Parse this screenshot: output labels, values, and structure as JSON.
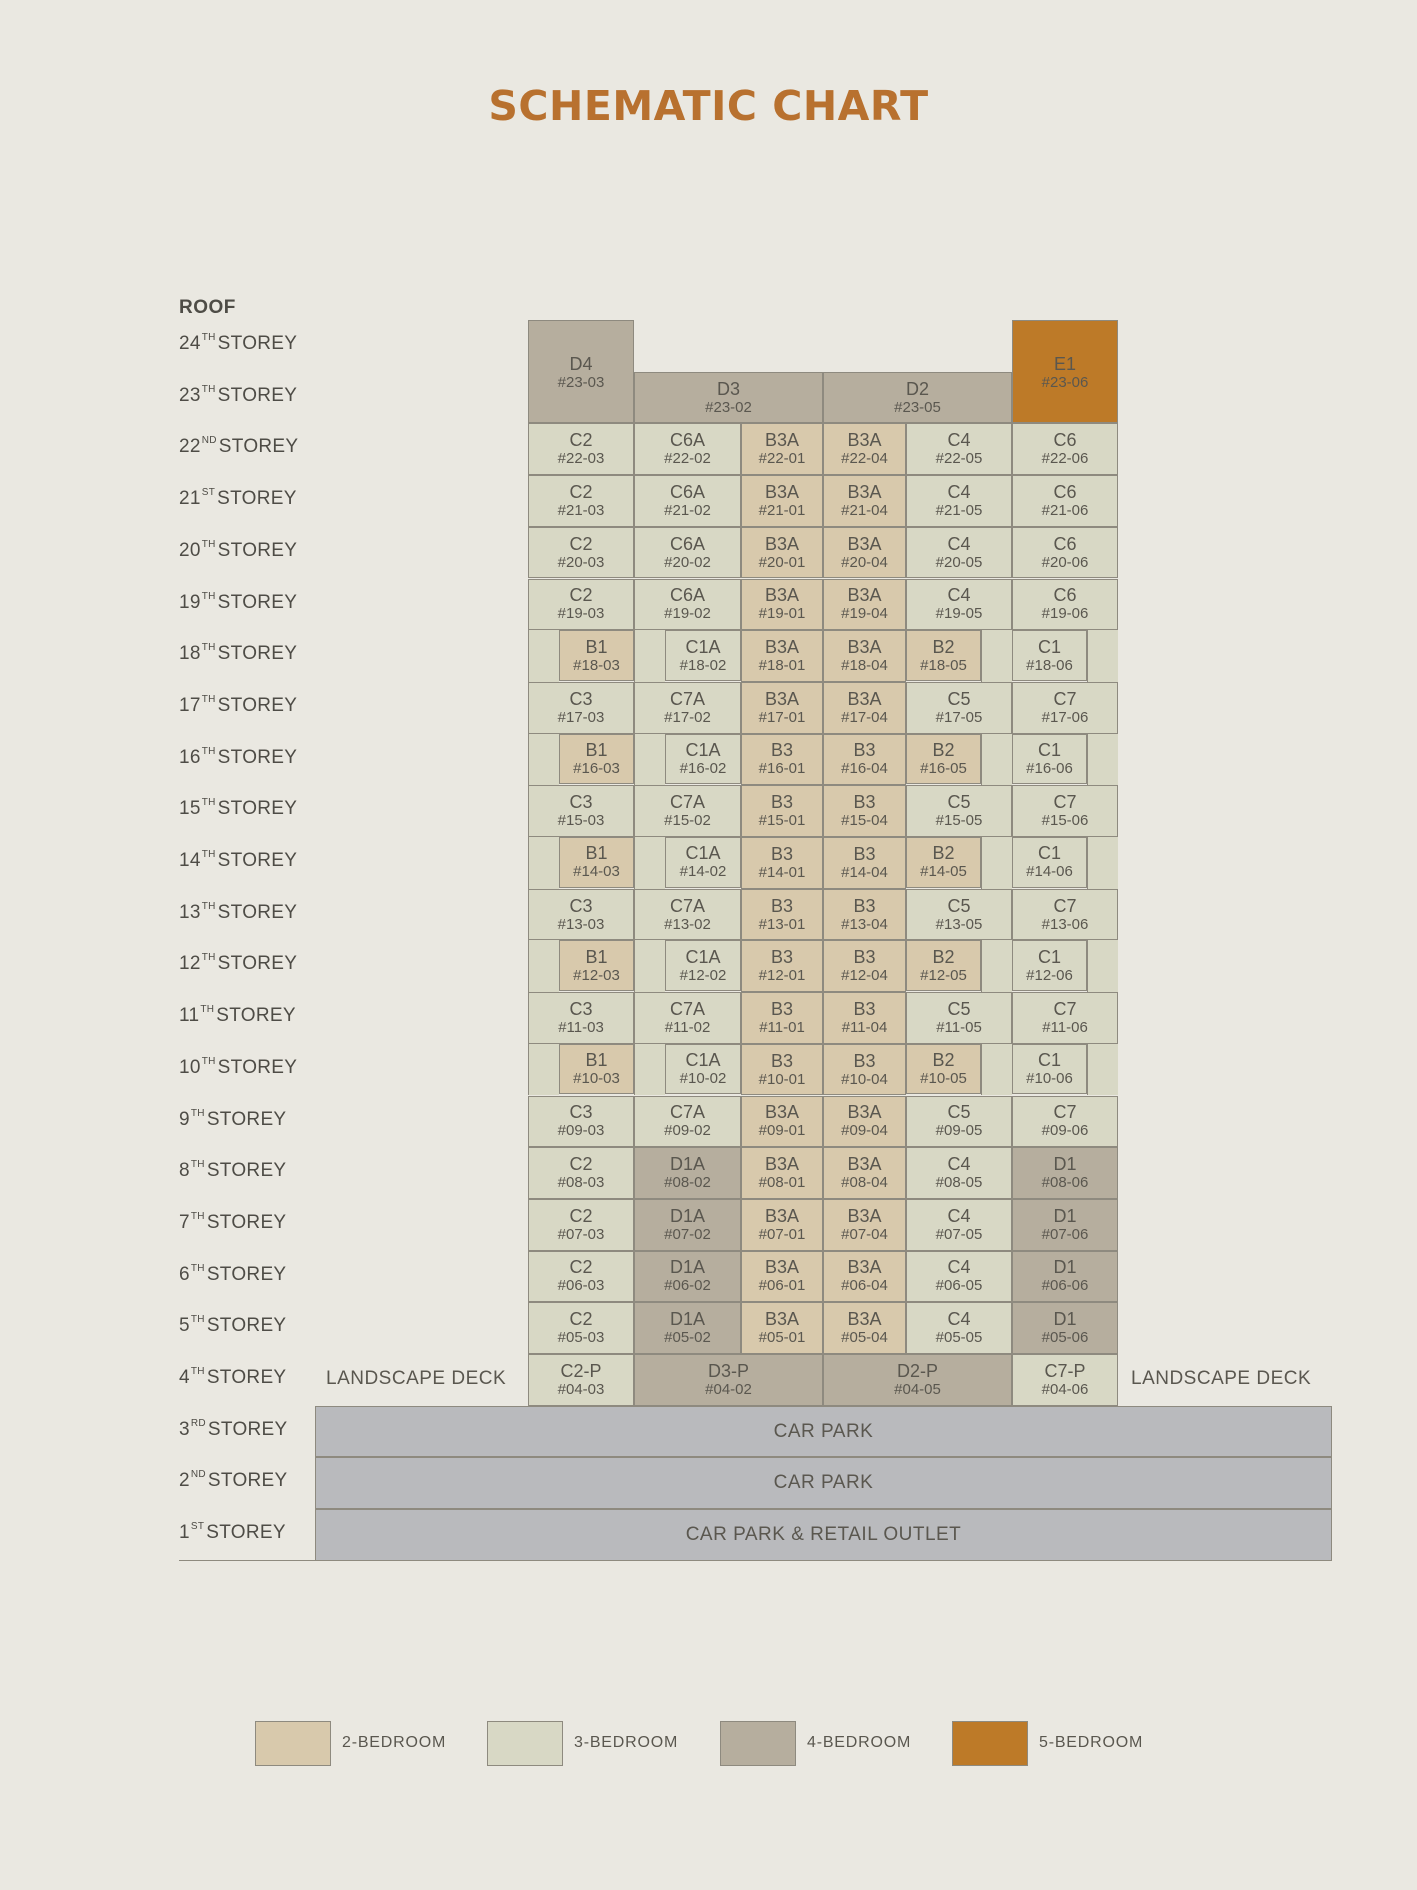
{
  "title": "SCHEMATIC CHART",
  "roof_label": "ROOF",
  "colors": {
    "2-bedroom": "#d8c9ac",
    "3-bedroom": "#d8d8c5",
    "4-bedroom": "#b6ae9e",
    "5-bedroom": "#bd7a28",
    "car_park": "#b9babd",
    "title": "#b8712f"
  },
  "storeys": [
    {
      "num": "24",
      "suffix": "TH",
      "word": "STOREY"
    },
    {
      "num": "23",
      "suffix": "TH",
      "word": "STOREY"
    },
    {
      "num": "22",
      "suffix": "ND",
      "word": "STOREY"
    },
    {
      "num": "21",
      "suffix": "ST",
      "word": "STOREY"
    },
    {
      "num": "20",
      "suffix": "TH",
      "word": "STOREY"
    },
    {
      "num": "19",
      "suffix": "TH",
      "word": "STOREY"
    },
    {
      "num": "18",
      "suffix": "TH",
      "word": "STOREY"
    },
    {
      "num": "17",
      "suffix": "TH",
      "word": "STOREY"
    },
    {
      "num": "16",
      "suffix": "TH",
      "word": "STOREY"
    },
    {
      "num": "15",
      "suffix": "TH",
      "word": "STOREY"
    },
    {
      "num": "14",
      "suffix": "TH",
      "word": "STOREY"
    },
    {
      "num": "13",
      "suffix": "TH",
      "word": "STOREY"
    },
    {
      "num": "12",
      "suffix": "TH",
      "word": "STOREY"
    },
    {
      "num": "11",
      "suffix": "TH",
      "word": "STOREY"
    },
    {
      "num": "10",
      "suffix": "TH",
      "word": "STOREY"
    },
    {
      "num": "9",
      "suffix": "TH",
      "word": "STOREY"
    },
    {
      "num": "8",
      "suffix": "TH",
      "word": "STOREY"
    },
    {
      "num": "7",
      "suffix": "TH",
      "word": "STOREY"
    },
    {
      "num": "6",
      "suffix": "TH",
      "word": "STOREY"
    },
    {
      "num": "5",
      "suffix": "TH",
      "word": "STOREY"
    },
    {
      "num": "4",
      "suffix": "TH",
      "word": "STOREY"
    },
    {
      "num": "3",
      "suffix": "RD",
      "word": "STOREY"
    },
    {
      "num": "2",
      "suffix": "ND",
      "word": "STOREY"
    },
    {
      "num": "1",
      "suffix": "ST",
      "word": "STOREY"
    }
  ],
  "units": [
    {
      "type": "D4",
      "unit": "#23-03",
      "bedroom": 4
    },
    {
      "type": "D3",
      "unit": "#23-02",
      "bedroom": 4
    },
    {
      "type": "D2",
      "unit": "#23-05",
      "bedroom": 4
    },
    {
      "type": "E1",
      "unit": "#23-06",
      "bedroom": 5
    },
    {
      "type": "C2",
      "unit": "#22-03",
      "bedroom": 3
    },
    {
      "type": "C6A",
      "unit": "#22-02",
      "bedroom": 3
    },
    {
      "type": "B3A",
      "unit": "#22-01",
      "bedroom": 2
    },
    {
      "type": "B3A",
      "unit": "#22-04",
      "bedroom": 2
    },
    {
      "type": "C4",
      "unit": "#22-05",
      "bedroom": 3
    },
    {
      "type": "C6",
      "unit": "#22-06",
      "bedroom": 3
    },
    {
      "type": "C2",
      "unit": "#21-03",
      "bedroom": 3
    },
    {
      "type": "C6A",
      "unit": "#21-02",
      "bedroom": 3
    },
    {
      "type": "B3A",
      "unit": "#21-01",
      "bedroom": 2
    },
    {
      "type": "B3A",
      "unit": "#21-04",
      "bedroom": 2
    },
    {
      "type": "C4",
      "unit": "#21-05",
      "bedroom": 3
    },
    {
      "type": "C6",
      "unit": "#21-06",
      "bedroom": 3
    },
    {
      "type": "C2",
      "unit": "#20-03",
      "bedroom": 3
    },
    {
      "type": "C6A",
      "unit": "#20-02",
      "bedroom": 3
    },
    {
      "type": "B3A",
      "unit": "#20-01",
      "bedroom": 2
    },
    {
      "type": "B3A",
      "unit": "#20-04",
      "bedroom": 2
    },
    {
      "type": "C4",
      "unit": "#20-05",
      "bedroom": 3
    },
    {
      "type": "C6",
      "unit": "#20-06",
      "bedroom": 3
    },
    {
      "type": "C2",
      "unit": "#19-03",
      "bedroom": 3
    },
    {
      "type": "C6A",
      "unit": "#19-02",
      "bedroom": 3
    },
    {
      "type": "B3A",
      "unit": "#19-01",
      "bedroom": 2
    },
    {
      "type": "B3A",
      "unit": "#19-04",
      "bedroom": 2
    },
    {
      "type": "C4",
      "unit": "#19-05",
      "bedroom": 3
    },
    {
      "type": "C6",
      "unit": "#19-06",
      "bedroom": 3
    },
    {
      "type": "B1",
      "unit": "#18-03",
      "bedroom": 2
    },
    {
      "type": "C1A",
      "unit": "#18-02",
      "bedroom": 3
    },
    {
      "type": "B3A",
      "unit": "#18-01",
      "bedroom": 2
    },
    {
      "type": "B3A",
      "unit": "#18-04",
      "bedroom": 2
    },
    {
      "type": "B2",
      "unit": "#18-05",
      "bedroom": 2
    },
    {
      "type": "C1",
      "unit": "#18-06",
      "bedroom": 3
    },
    {
      "type": "C3",
      "unit": "#17-03",
      "bedroom": 3
    },
    {
      "type": "C7A",
      "unit": "#17-02",
      "bedroom": 3
    },
    {
      "type": "B3A",
      "unit": "#17-01",
      "bedroom": 2
    },
    {
      "type": "B3A",
      "unit": "#17-04",
      "bedroom": 2
    },
    {
      "type": "C5",
      "unit": "#17-05",
      "bedroom": 3
    },
    {
      "type": "C7",
      "unit": "#17-06",
      "bedroom": 3
    },
    {
      "type": "B1",
      "unit": "#16-03",
      "bedroom": 2
    },
    {
      "type": "C1A",
      "unit": "#16-02",
      "bedroom": 3
    },
    {
      "type": "B3",
      "unit": "#16-01",
      "bedroom": 2
    },
    {
      "type": "B3",
      "unit": "#16-04",
      "bedroom": 2
    },
    {
      "type": "B2",
      "unit": "#16-05",
      "bedroom": 2
    },
    {
      "type": "C1",
      "unit": "#16-06",
      "bedroom": 3
    },
    {
      "type": "C3",
      "unit": "#15-03",
      "bedroom": 3
    },
    {
      "type": "C7A",
      "unit": "#15-02",
      "bedroom": 3
    },
    {
      "type": "B3",
      "unit": "#15-01",
      "bedroom": 2
    },
    {
      "type": "B3",
      "unit": "#15-04",
      "bedroom": 2
    },
    {
      "type": "C5",
      "unit": "#15-05",
      "bedroom": 3
    },
    {
      "type": "C7",
      "unit": "#15-06",
      "bedroom": 3
    },
    {
      "type": "B1",
      "unit": "#14-03",
      "bedroom": 2
    },
    {
      "type": "C1A",
      "unit": "#14-02",
      "bedroom": 3
    },
    {
      "type": "B3",
      "unit": "#14-01",
      "bedroom": 2
    },
    {
      "type": "B3",
      "unit": "#14-04",
      "bedroom": 2
    },
    {
      "type": "B2",
      "unit": "#14-05",
      "bedroom": 2
    },
    {
      "type": "C1",
      "unit": "#14-06",
      "bedroom": 3
    },
    {
      "type": "C3",
      "unit": "#13-03",
      "bedroom": 3
    },
    {
      "type": "C7A",
      "unit": "#13-02",
      "bedroom": 3
    },
    {
      "type": "B3",
      "unit": "#13-01",
      "bedroom": 2
    },
    {
      "type": "B3",
      "unit": "#13-04",
      "bedroom": 2
    },
    {
      "type": "C5",
      "unit": "#13-05",
      "bedroom": 3
    },
    {
      "type": "C7",
      "unit": "#13-06",
      "bedroom": 3
    },
    {
      "type": "B1",
      "unit": "#12-03",
      "bedroom": 2
    },
    {
      "type": "C1A",
      "unit": "#12-02",
      "bedroom": 3
    },
    {
      "type": "B3",
      "unit": "#12-01",
      "bedroom": 2
    },
    {
      "type": "B3",
      "unit": "#12-04",
      "bedroom": 2
    },
    {
      "type": "B2",
      "unit": "#12-05",
      "bedroom": 2
    },
    {
      "type": "C1",
      "unit": "#12-06",
      "bedroom": 3
    },
    {
      "type": "C3",
      "unit": "#11-03",
      "bedroom": 3
    },
    {
      "type": "C7A",
      "unit": "#11-02",
      "bedroom": 3
    },
    {
      "type": "B3",
      "unit": "#11-01",
      "bedroom": 2
    },
    {
      "type": "B3",
      "unit": "#11-04",
      "bedroom": 2
    },
    {
      "type": "C5",
      "unit": "#11-05",
      "bedroom": 3
    },
    {
      "type": "C7",
      "unit": "#11-06",
      "bedroom": 3
    },
    {
      "type": "B1",
      "unit": "#10-03",
      "bedroom": 2
    },
    {
      "type": "C1A",
      "unit": "#10-02",
      "bedroom": 3
    },
    {
      "type": "B3",
      "unit": "#10-01",
      "bedroom": 2
    },
    {
      "type": "B3",
      "unit": "#10-04",
      "bedroom": 2
    },
    {
      "type": "B2",
      "unit": "#10-05",
      "bedroom": 2
    },
    {
      "type": "C1",
      "unit": "#10-06",
      "bedroom": 3
    },
    {
      "type": "C3",
      "unit": "#09-03",
      "bedroom": 3
    },
    {
      "type": "C7A",
      "unit": "#09-02",
      "bedroom": 3
    },
    {
      "type": "B3A",
      "unit": "#09-01",
      "bedroom": 2
    },
    {
      "type": "B3A",
      "unit": "#09-04",
      "bedroom": 2
    },
    {
      "type": "C5",
      "unit": "#09-05",
      "bedroom": 3
    },
    {
      "type": "C7",
      "unit": "#09-06",
      "bedroom": 3
    },
    {
      "type": "C2",
      "unit": "#08-03",
      "bedroom": 3
    },
    {
      "type": "D1A",
      "unit": "#08-02",
      "bedroom": 4
    },
    {
      "type": "B3A",
      "unit": "#08-01",
      "bedroom": 2
    },
    {
      "type": "B3A",
      "unit": "#08-04",
      "bedroom": 2
    },
    {
      "type": "C4",
      "unit": "#08-05",
      "bedroom": 3
    },
    {
      "type": "D1",
      "unit": "#08-06",
      "bedroom": 4
    },
    {
      "type": "C2",
      "unit": "#07-03",
      "bedroom": 3
    },
    {
      "type": "D1A",
      "unit": "#07-02",
      "bedroom": 4
    },
    {
      "type": "B3A",
      "unit": "#07-01",
      "bedroom": 2
    },
    {
      "type": "B3A",
      "unit": "#07-04",
      "bedroom": 2
    },
    {
      "type": "C4",
      "unit": "#07-05",
      "bedroom": 3
    },
    {
      "type": "D1",
      "unit": "#07-06",
      "bedroom": 4
    },
    {
      "type": "C2",
      "unit": "#06-03",
      "bedroom": 3
    },
    {
      "type": "D1A",
      "unit": "#06-02",
      "bedroom": 4
    },
    {
      "type": "B3A",
      "unit": "#06-01",
      "bedroom": 2
    },
    {
      "type": "B3A",
      "unit": "#06-04",
      "bedroom": 2
    },
    {
      "type": "C4",
      "unit": "#06-05",
      "bedroom": 3
    },
    {
      "type": "D1",
      "unit": "#06-06",
      "bedroom": 4
    },
    {
      "type": "C2",
      "unit": "#05-03",
      "bedroom": 3
    },
    {
      "type": "D1A",
      "unit": "#05-02",
      "bedroom": 4
    },
    {
      "type": "B3A",
      "unit": "#05-01",
      "bedroom": 2
    },
    {
      "type": "B3A",
      "unit": "#05-04",
      "bedroom": 2
    },
    {
      "type": "C4",
      "unit": "#05-05",
      "bedroom": 3
    },
    {
      "type": "D1",
      "unit": "#05-06",
      "bedroom": 4
    },
    {
      "type": "C2-P",
      "unit": "#04-03",
      "bedroom": 3
    },
    {
      "type": "D3-P",
      "unit": "#04-02",
      "bedroom": 4
    },
    {
      "type": "D2-P",
      "unit": "#04-05",
      "bedroom": 4
    },
    {
      "type": "C7-P",
      "unit": "#04-06",
      "bedroom": 3
    }
  ],
  "landscape_deck_left": "LANDSCAPE DECK",
  "landscape_deck_right": "LANDSCAPE DECK",
  "podium": [
    "CAR PARK",
    "CAR PARK",
    "CAR PARK & RETAIL OUTLET"
  ],
  "legend": [
    {
      "label": "2-BEDROOM",
      "color": "#d8c9ac"
    },
    {
      "label": "3-BEDROOM",
      "color": "#d8d8c5"
    },
    {
      "label": "4-BEDROOM",
      "color": "#b6ae9e"
    },
    {
      "label": "5-BEDROOM",
      "color": "#bd7a28"
    }
  ]
}
